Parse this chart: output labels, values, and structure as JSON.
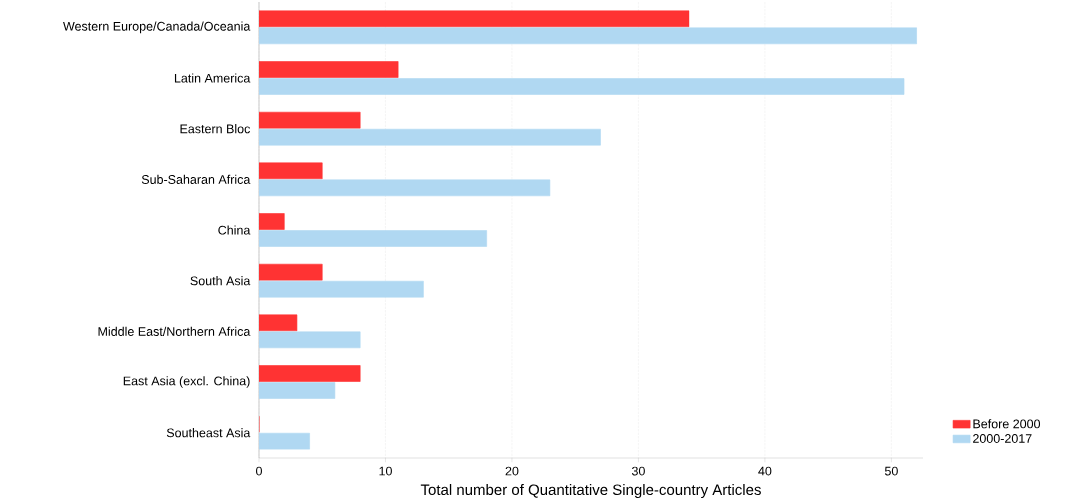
{
  "chart_data": {
    "type": "bar",
    "orientation": "horizontal",
    "xlabel": "Total number of Quantitative Single-country Articles",
    "categories": [
      "Western Europe/Canada/Oceania",
      "Latin America",
      "Eastern Bloc",
      "Sub-Saharan Africa",
      "China",
      "South Asia",
      "Middle East/Northern Africa",
      "East Asia (excl. China)",
      "Southeast Asia"
    ],
    "series": [
      {
        "name": "Before 2000",
        "color": "#ff3333",
        "values": [
          34,
          11,
          8,
          5,
          2,
          5,
          3,
          8,
          0
        ]
      },
      {
        "name": "2000-2017",
        "color": "#b0d8f2",
        "values": [
          52,
          51,
          27,
          23,
          18,
          13,
          8,
          6,
          4
        ]
      }
    ],
    "xlim": [
      0,
      52.5
    ],
    "xticks": [
      0,
      10,
      20,
      30,
      40,
      50
    ],
    "grid": "x",
    "legend": "bottom right"
  }
}
